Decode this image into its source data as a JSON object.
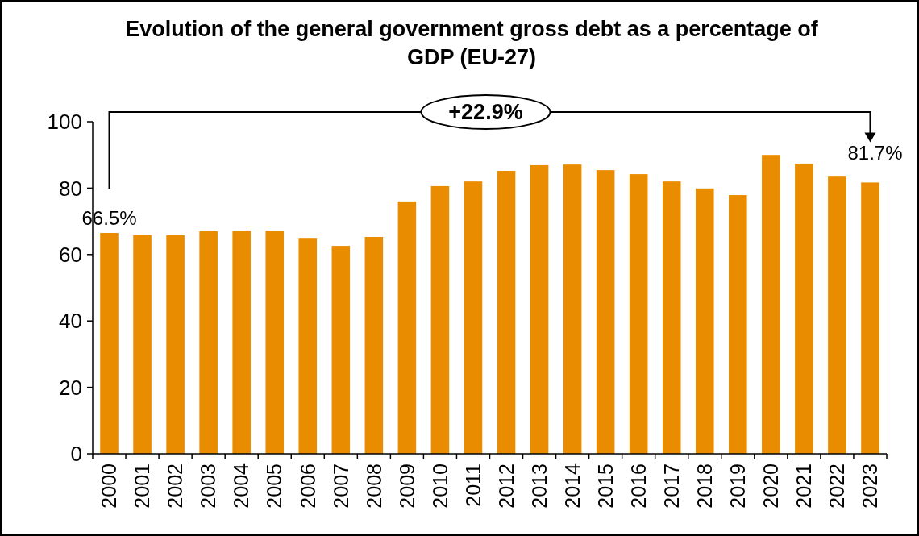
{
  "chart_data": {
    "type": "bar",
    "title": "Evolution of the general government gross debt as a percentage of GDP (EU-27)",
    "categories": [
      "2000",
      "2001",
      "2002",
      "2003",
      "2004",
      "2005",
      "2006",
      "2007",
      "2008",
      "2009",
      "2010",
      "2011",
      "2012",
      "2013",
      "2014",
      "2015",
      "2016",
      "2017",
      "2018",
      "2019",
      "2020",
      "2021",
      "2022",
      "2023"
    ],
    "values": [
      66.5,
      65.8,
      65.8,
      67.0,
      67.2,
      67.2,
      65.0,
      62.6,
      65.3,
      76.0,
      80.6,
      82.0,
      85.2,
      86.9,
      87.1,
      85.4,
      84.2,
      82.0,
      79.9,
      77.9,
      90.0,
      87.4,
      83.7,
      81.7
    ],
    "value_labels": [
      "66.5%",
      null,
      null,
      null,
      null,
      null,
      null,
      null,
      null,
      null,
      null,
      null,
      null,
      null,
      null,
      null,
      null,
      null,
      null,
      null,
      null,
      null,
      null,
      "81.7%"
    ],
    "color": "#ea8c00",
    "ylim": [
      0,
      100
    ],
    "yticks": [
      0,
      20,
      40,
      60,
      80,
      100
    ],
    "grid": false,
    "annotations": [
      "+22.9%"
    ]
  }
}
